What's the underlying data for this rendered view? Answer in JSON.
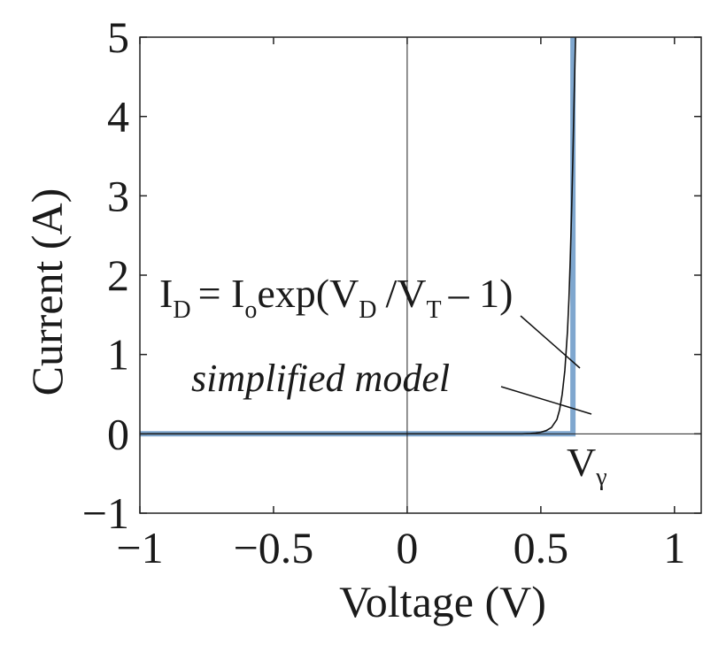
{
  "chart_data": {
    "type": "line",
    "title": "",
    "xlabel": "Voltage (V)",
    "ylabel": "Current (A)",
    "xlim": [
      -1,
      1.1
    ],
    "ylim": [
      -1,
      5
    ],
    "xticks": [
      -1,
      -0.5,
      0,
      0.5,
      1
    ],
    "xtick_labels": [
      "−1",
      "−0.5",
      "0",
      "0.5",
      "1"
    ],
    "yticks": [
      -1,
      0,
      1,
      2,
      3,
      4,
      5
    ],
    "ytick_labels": [
      "−1",
      "0",
      "1",
      "2",
      "3",
      "4",
      "5"
    ],
    "zero_lines": true,
    "grid": false,
    "series": [
      {
        "name": "I_D = I_o exp(V_D / V_T − 1)",
        "color": "#111111",
        "points": [
          [
            -1,
            0
          ],
          [
            0.4,
            0
          ],
          [
            0.43,
            0.0
          ],
          [
            0.46,
            0.005
          ],
          [
            0.48,
            0.01
          ],
          [
            0.5,
            0.02
          ],
          [
            0.52,
            0.04
          ],
          [
            0.54,
            0.08
          ],
          [
            0.56,
            0.18
          ],
          [
            0.57,
            0.3
          ],
          [
            0.58,
            0.5
          ],
          [
            0.59,
            0.8
          ],
          [
            0.6,
            1.3
          ],
          [
            0.605,
            1.7
          ],
          [
            0.61,
            2.2
          ],
          [
            0.615,
            2.8
          ],
          [
            0.62,
            3.5
          ],
          [
            0.625,
            4.3
          ],
          [
            0.63,
            5.0
          ]
        ]
      },
      {
        "name": "simplified model",
        "color": "#7fa7cf",
        "points": [
          [
            -1,
            0
          ],
          [
            0.62,
            0
          ],
          [
            0.62,
            5
          ]
        ]
      }
    ],
    "annotations": {
      "equation": {
        "I": "I",
        "D1": "D",
        "eq": "= I",
        "o": "o",
        "exp": "exp(V",
        "D2": "D",
        "mid": "/V",
        "T": "T",
        "end": "– 1)"
      },
      "simplified": "simplified model",
      "vgamma": {
        "V": "V",
        "gamma": "γ"
      }
    }
  }
}
